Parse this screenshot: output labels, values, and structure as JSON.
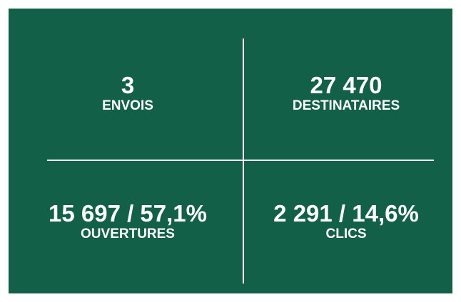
{
  "stats": [
    {
      "value": "3",
      "label": "ENVOIS"
    },
    {
      "value": "27 470",
      "label": "DESTINATAIRES"
    },
    {
      "value": "15 697 / 57,1%",
      "label": "OUVERTURES"
    },
    {
      "value": "2 291 / 14,6%",
      "label": "CLICS"
    }
  ]
}
